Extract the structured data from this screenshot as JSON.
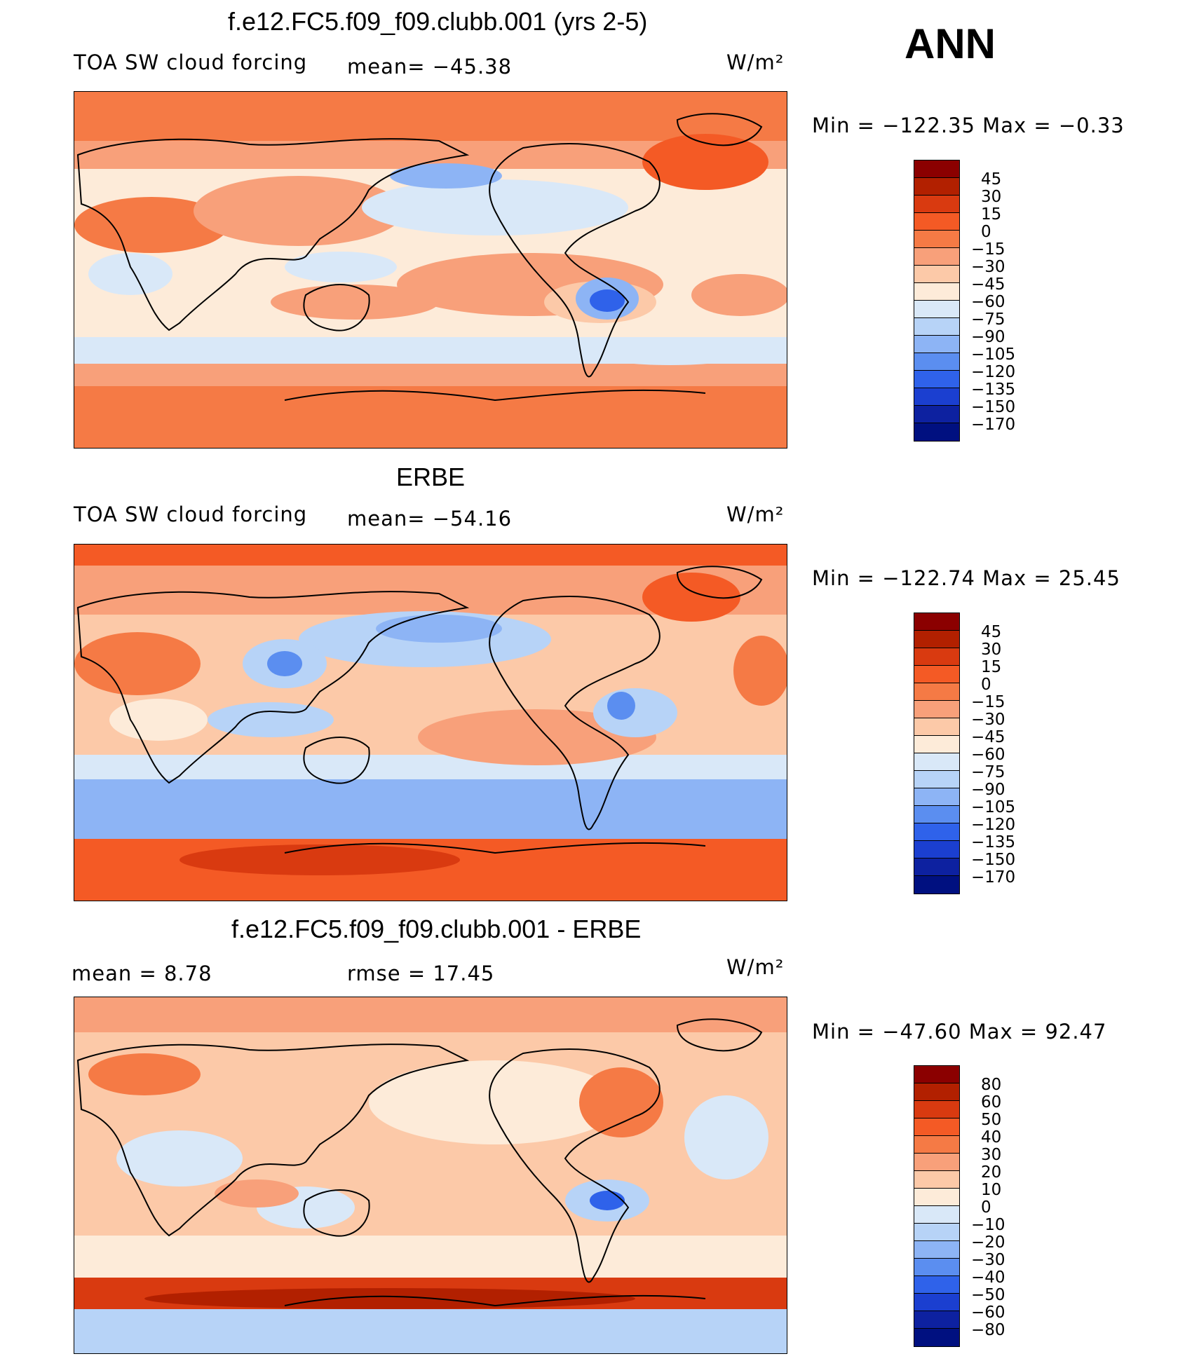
{
  "season": "ANN",
  "units": "W/m²",
  "panels": [
    {
      "id": "model",
      "title": "f.e12.FC5.f09_f09.clubb.001 (yrs 2-5)",
      "left_label": "TOA  SW  cloud  forcing",
      "mid_label": "mean=  −45.38",
      "right_label": "W/m²",
      "minmax": "Min  =  −122.35  Max  =    −0.33",
      "levels": [
        "45",
        "30",
        "15",
        "0",
        "−15",
        "−30",
        "−45",
        "−60",
        "−75",
        "−90",
        "−105",
        "−120",
        "−135",
        "−150",
        "−170"
      ],
      "colors": [
        "#8b0000",
        "#b22000",
        "#d93a10",
        "#f45a25",
        "#f57a45",
        "#f8a07a",
        "#fcc9a8",
        "#fdebd9",
        "#d9e8f8",
        "#b7d3f7",
        "#8db4f5",
        "#5b8ef0",
        "#2f62ea",
        "#1b3fd0",
        "#0d21a0",
        "#001080"
      ]
    },
    {
      "id": "obs",
      "title": "ERBE",
      "left_label": "TOA  SW  cloud  forcing",
      "mid_label": "mean=  −54.16",
      "right_label": "W/m²",
      "minmax": "Min  =  −122.74  Max  =    25.45",
      "levels": [
        "45",
        "30",
        "15",
        "0",
        "−15",
        "−30",
        "−45",
        "−60",
        "−75",
        "−90",
        "−105",
        "−120",
        "−135",
        "−150",
        "−170"
      ],
      "colors": [
        "#8b0000",
        "#b22000",
        "#d93a10",
        "#f45a25",
        "#f57a45",
        "#f8a07a",
        "#fcc9a8",
        "#fdebd9",
        "#d9e8f8",
        "#b7d3f7",
        "#8db4f5",
        "#5b8ef0",
        "#2f62ea",
        "#1b3fd0",
        "#0d21a0",
        "#001080"
      ]
    },
    {
      "id": "diff",
      "title": "f.e12.FC5.f09_f09.clubb.001 - ERBE",
      "left_label": "mean  =       8.78",
      "mid_label": "rmse  =     17.45",
      "right_label": "W/m²",
      "minmax": "Min  =  −47.60  Max  =    92.47",
      "levels": [
        "80",
        "60",
        "50",
        "40",
        "30",
        "20",
        "10",
        "0",
        "−10",
        "−20",
        "−30",
        "−40",
        "−50",
        "−60",
        "−80"
      ],
      "colors": [
        "#8b0000",
        "#b22000",
        "#d93a10",
        "#f45a25",
        "#f57a45",
        "#f8a07a",
        "#fcc9a8",
        "#fdebd9",
        "#d9e8f8",
        "#b7d3f7",
        "#8db4f5",
        "#5b8ef0",
        "#2f62ea",
        "#1b3fd0",
        "#0d21a0",
        "#001080"
      ]
    }
  ],
  "chart_data": [
    {
      "type": "heatmap",
      "title": "f.e12.FC5.f09_f09.clubb.001 (yrs 2-5)",
      "variable": "TOA SW cloud forcing",
      "units": "W/m²",
      "mean": -45.38,
      "min": -122.35,
      "max": -0.33,
      "contour_levels": [
        45,
        30,
        15,
        0,
        -15,
        -30,
        -45,
        -60,
        -75,
        -90,
        -105,
        -120,
        -135,
        -150,
        -170
      ]
    },
    {
      "type": "heatmap",
      "title": "ERBE",
      "variable": "TOA SW cloud forcing",
      "units": "W/m²",
      "mean": -54.16,
      "min": -122.74,
      "max": 25.45,
      "contour_levels": [
        45,
        30,
        15,
        0,
        -15,
        -30,
        -45,
        -60,
        -75,
        -90,
        -105,
        -120,
        -135,
        -150,
        -170
      ]
    },
    {
      "type": "heatmap",
      "title": "f.e12.FC5.f09_f09.clubb.001 - ERBE",
      "units": "W/m²",
      "mean": 8.78,
      "rmse": 17.45,
      "min": -47.6,
      "max": 92.47,
      "contour_levels": [
        80,
        60,
        50,
        40,
        30,
        20,
        10,
        0,
        -10,
        -20,
        -30,
        -40,
        -50,
        -60,
        -80
      ]
    }
  ]
}
